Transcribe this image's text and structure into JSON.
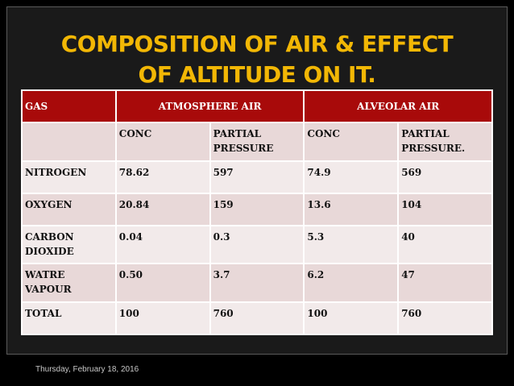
{
  "title": {
    "line1": "COMPOSITION OF AIR & EFFECT",
    "line2": "OF ALTITUDE ON IT."
  },
  "table": {
    "header": {
      "gas": "GAS",
      "atmosphere": "ATMOSPHERE AIR",
      "alveolar": "ALVEOLAR AIR"
    },
    "subheader": {
      "conc1": "CONC",
      "pp1": "PARTIAL PRESSURE",
      "conc2": "CONC",
      "pp2": "PARTIAL PRESSURE."
    },
    "rows": [
      {
        "gas": "NITROGEN",
        "atm_conc": "78.62",
        "atm_pp": "597",
        "alv_conc": "74.9",
        "alv_pp": "569"
      },
      {
        "gas": "OXYGEN",
        "atm_conc": "20.84",
        "atm_pp": "159",
        "alv_conc": "13.6",
        "alv_pp": "104"
      },
      {
        "gas": "CARBON DIOXIDE",
        "atm_conc": "0.04",
        "atm_pp": "0.3",
        "alv_conc": "5.3",
        "alv_pp": "40"
      },
      {
        "gas": "WATRE VAPOUR",
        "atm_conc": "0.50",
        "atm_pp": "3.7",
        "alv_conc": "6.2",
        "alv_pp": "47"
      },
      {
        "gas": "TOTAL",
        "atm_conc": "100",
        "atm_pp": "760",
        "alv_conc": "100",
        "alv_pp": "760"
      }
    ]
  },
  "footer": {
    "date": "Thursday, February 18, 2016"
  },
  "colors": {
    "title": "#f2b705",
    "header_bg": "#a80a0a",
    "row_a": "#e8d8d8",
    "row_b": "#f2eaea"
  }
}
